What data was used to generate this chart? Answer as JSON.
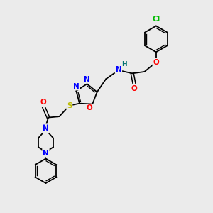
{
  "background_color": "#ebebeb",
  "bond_color": "#000000",
  "atom_colors": {
    "N": "#0000ff",
    "O": "#ff0000",
    "S": "#bbbb00",
    "Cl": "#00bb00",
    "H": "#007070",
    "C": "#000000"
  },
  "font_size_atoms": 7.5,
  "figsize": [
    3.0,
    3.0
  ],
  "dpi": 100
}
